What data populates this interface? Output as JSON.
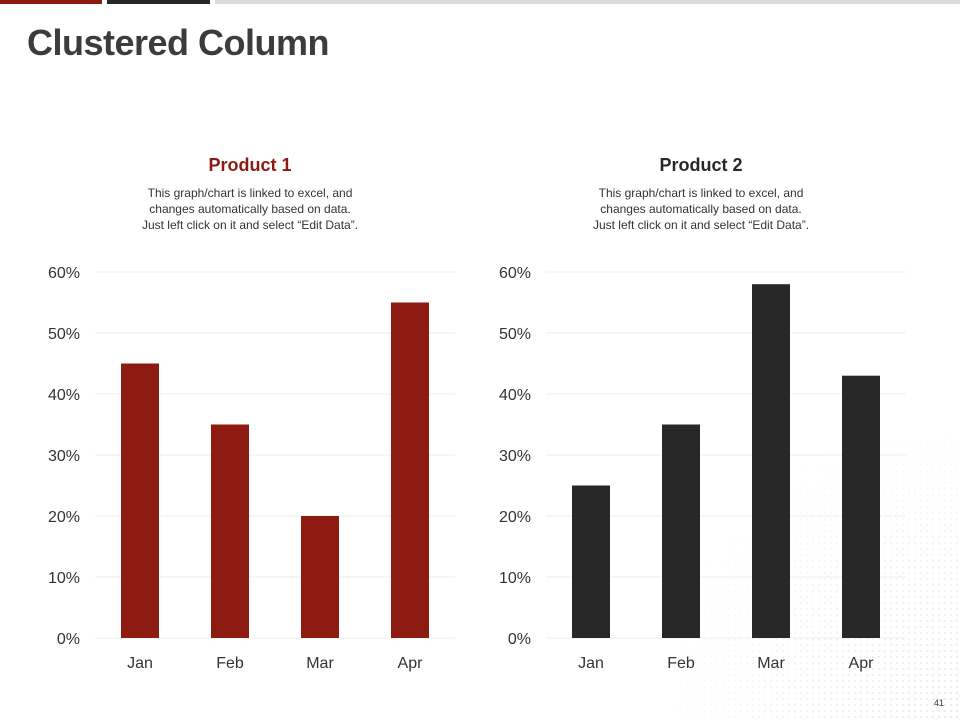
{
  "page": {
    "title": "Clustered Column",
    "page_number": "41",
    "colors": {
      "accent_red": "#8e1b12",
      "dark": "#282828",
      "light_gray": "#dcdcdc",
      "title_gray": "#3c3c3c"
    }
  },
  "chart_data": [
    {
      "type": "bar",
      "title": "Product  1",
      "title_color": "#8e1b12",
      "note": "This graph/chart is linked to excel, and\nchanges automatically based on data.\nJust left click on it and select “Edit Data”.",
      "categories": [
        "Jan",
        "Feb",
        "Mar",
        "Apr"
      ],
      "values": [
        45,
        35,
        20,
        55
      ],
      "bar_color": "#8e1b12",
      "ylim": [
        0,
        60
      ],
      "yticks": [
        "0%",
        "10%",
        "20%",
        "30%",
        "40%",
        "50%",
        "60%"
      ],
      "grid": true,
      "xlabel": "",
      "ylabel": ""
    },
    {
      "type": "bar",
      "title": "Product  2",
      "title_color": "#282828",
      "note": "This graph/chart is linked to excel, and\nchanges automatically based on data.\nJust left click on it and select “Edit Data”.",
      "categories": [
        "Jan",
        "Feb",
        "Mar",
        "Apr"
      ],
      "values": [
        25,
        35,
        58,
        43
      ],
      "bar_color": "#282828",
      "ylim": [
        0,
        60
      ],
      "yticks": [
        "0%",
        "10%",
        "20%",
        "30%",
        "40%",
        "50%",
        "60%"
      ],
      "grid": true,
      "xlabel": "",
      "ylabel": ""
    }
  ]
}
